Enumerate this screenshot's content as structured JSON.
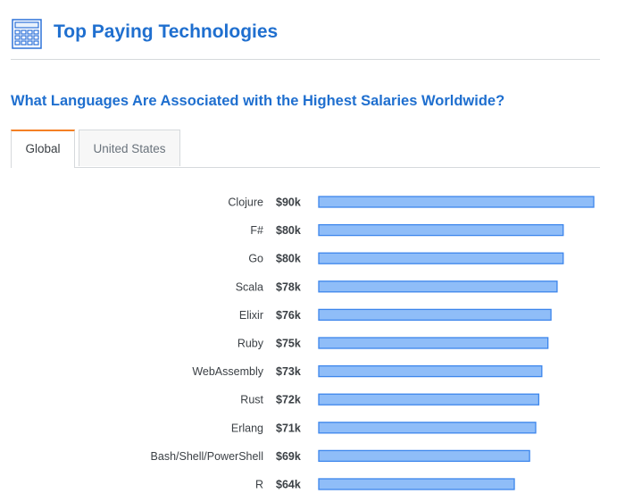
{
  "header": {
    "title": "Top Paying Technologies",
    "icon": "calculator-icon"
  },
  "subtitle": "What Languages Are Associated with the Highest Salaries Worldwide?",
  "tabs": [
    {
      "label": "Global",
      "active": true
    },
    {
      "label": "United States",
      "active": false
    }
  ],
  "colors": {
    "title": "#1f6fcf",
    "bar_fill": "#8fbdf8",
    "bar_stroke": "#3d86ec",
    "active_tab_accent": "#f48024"
  },
  "chart_data": {
    "type": "bar",
    "orientation": "horizontal",
    "categories": [
      "Clojure",
      "F#",
      "Go",
      "Scala",
      "Elixir",
      "Ruby",
      "WebAssembly",
      "Rust",
      "Erlang",
      "Bash/Shell/PowerShell",
      "R"
    ],
    "values": [
      90,
      80,
      80,
      78,
      76,
      75,
      73,
      72,
      71,
      69,
      64
    ],
    "value_labels": [
      "$90k",
      "$80k",
      "$80k",
      "$78k",
      "$76k",
      "$75k",
      "$73k",
      "$72k",
      "$71k",
      "$69k",
      "$64k"
    ],
    "xlim": [
      0,
      90
    ],
    "grid": false,
    "legend": "none"
  }
}
